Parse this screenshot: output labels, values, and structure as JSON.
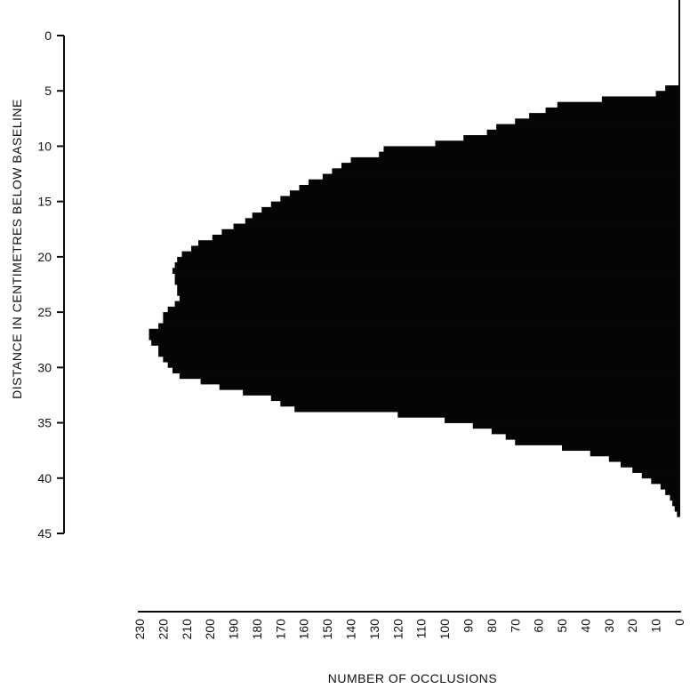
{
  "colors": {
    "background": "#ffffff",
    "ink": "#0b0b0b",
    "fill": "#050505"
  },
  "chart_data": {
    "type": "bar",
    "orientation": "horizontal",
    "title": "",
    "xlabel": "NUMBER OF OCCLUSIONS",
    "ylabel": "DISTANCE IN CENTIMETRES BELOW BASELINE",
    "x_reversed": true,
    "xlim": [
      0,
      230
    ],
    "ylim": [
      0,
      45
    ],
    "grid": false,
    "x_ticks": [
      230,
      220,
      210,
      200,
      190,
      180,
      170,
      160,
      150,
      140,
      130,
      120,
      110,
      100,
      90,
      80,
      70,
      60,
      50,
      40,
      30,
      20,
      10,
      0
    ],
    "x_tick_labels": [
      "230",
      "220",
      "210",
      "200",
      "190",
      "180",
      "170",
      "160",
      "150",
      "140",
      "130",
      "120",
      "110",
      "100",
      "90",
      "80",
      "70",
      "60",
      "50",
      "40",
      "30",
      "20",
      "10",
      "0"
    ],
    "y_ticks": [
      0,
      5,
      10,
      15,
      20,
      25,
      30,
      35,
      40,
      45
    ],
    "y_tick_labels": [
      "0",
      "5",
      "10",
      "15",
      "20",
      "25",
      "30",
      "35",
      "40",
      "45"
    ],
    "bin_width_cm": 0.5,
    "y": [
      4.5,
      5,
      5.5,
      6,
      6.5,
      7,
      7.5,
      8,
      8.5,
      9,
      9.5,
      10,
      10.5,
      11,
      11.5,
      12,
      12.5,
      13,
      13.5,
      14,
      14.5,
      15,
      15.5,
      16,
      16.5,
      17,
      17.5,
      18,
      18.5,
      19,
      19.5,
      20,
      20.5,
      21,
      21.5,
      22,
      22.5,
      23,
      23.5,
      24,
      24.5,
      25,
      25.5,
      26,
      26.5,
      27,
      27.5,
      28,
      28.5,
      29,
      29.5,
      30,
      30.5,
      31,
      31.5,
      32,
      32.5,
      33,
      33.5,
      34,
      34.5,
      35,
      35.5,
      36,
      36.5,
      37,
      37.5,
      38,
      38.5,
      39,
      39.5,
      40,
      40.5,
      41,
      41.5,
      42,
      42.5,
      43
    ],
    "values": [
      6,
      10,
      33,
      52,
      57,
      64,
      70,
      78,
      82,
      92,
      104,
      126,
      128,
      140,
      144,
      148,
      152,
      158,
      162,
      166,
      170,
      174,
      178,
      182,
      185,
      190,
      195,
      199,
      205,
      208,
      212,
      214,
      215,
      216,
      215,
      215,
      214,
      214,
      213,
      215,
      218,
      220,
      220,
      222,
      226,
      226,
      225,
      222,
      222,
      220,
      218,
      216,
      213,
      204,
      196,
      186,
      174,
      170,
      164,
      120,
      100,
      88,
      80,
      74,
      70,
      50,
      38,
      30,
      25,
      20,
      16,
      12,
      8,
      6,
      4,
      3,
      2,
      1
    ]
  }
}
